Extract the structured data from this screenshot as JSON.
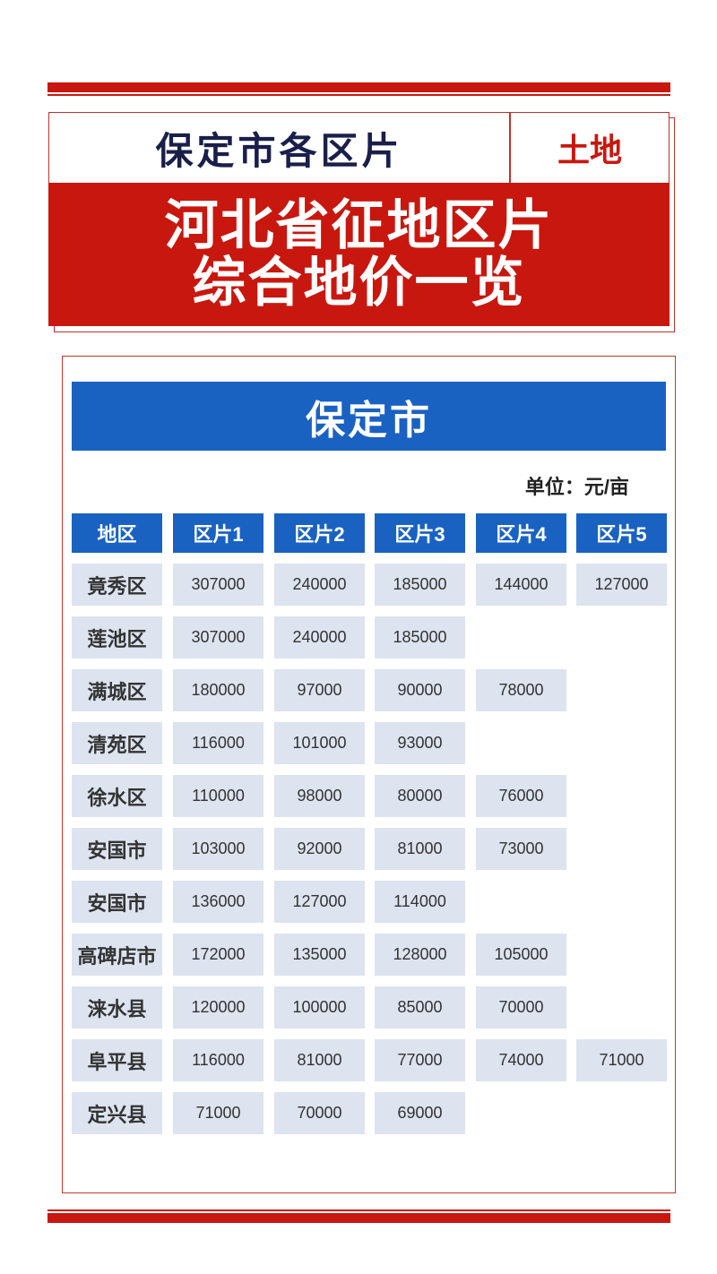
{
  "colors": {
    "red": "#c8170f",
    "blue": "#1a62c2",
    "navy": "#1a1f4a",
    "cell": "#dde3ef"
  },
  "header": {
    "subtitle": "保定市各区片",
    "tag": "土地",
    "title_line1": "河北省征地区片",
    "title_line2": "综合地价一览"
  },
  "table": {
    "city": "保定市",
    "unit": "单位：元/亩",
    "columns": [
      "地区",
      "区片1",
      "区片2",
      "区片3",
      "区片4",
      "区片5"
    ],
    "rows": [
      [
        "竟秀区",
        "307000",
        "240000",
        "185000",
        "144000",
        "127000"
      ],
      [
        "莲池区",
        "307000",
        "240000",
        "185000"
      ],
      [
        "满城区",
        "180000",
        "97000",
        "90000",
        "78000"
      ],
      [
        "清苑区",
        "116000",
        "101000",
        "93000"
      ],
      [
        "徐水区",
        "110000",
        "98000",
        "80000",
        "76000"
      ],
      [
        "安国市",
        "103000",
        "92000",
        "81000",
        "73000"
      ],
      [
        "安国市",
        "136000",
        "127000",
        "114000"
      ],
      [
        "高碑店市",
        "172000",
        "135000",
        "128000",
        "105000"
      ],
      [
        "涞水县",
        "120000",
        "100000",
        "85000",
        "70000"
      ],
      [
        "阜平县",
        "116000",
        "81000",
        "77000",
        "74000",
        "71000"
      ],
      [
        "定兴县",
        "71000",
        "70000",
        "69000"
      ]
    ]
  }
}
